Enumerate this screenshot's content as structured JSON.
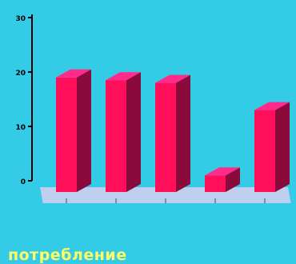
{
  "colors": {
    "background": "#33cbe6",
    "bar_front": "#ff0f5a",
    "bar_side": "#8a0a3c",
    "bar_top": "#ff2a8a",
    "floor": "#d8d0f0",
    "caption": "#ffff66"
  },
  "caption": "потребление",
  "chart_data": {
    "type": "bar",
    "title": "",
    "xlabel": "",
    "ylabel": "",
    "ylim": [
      0,
      30
    ],
    "yticks": [
      "0",
      "10",
      "20",
      "30"
    ],
    "categories": [
      "",
      "",
      "",
      "",
      ""
    ],
    "values": [
      19,
      18.5,
      18,
      1,
      13
    ]
  }
}
